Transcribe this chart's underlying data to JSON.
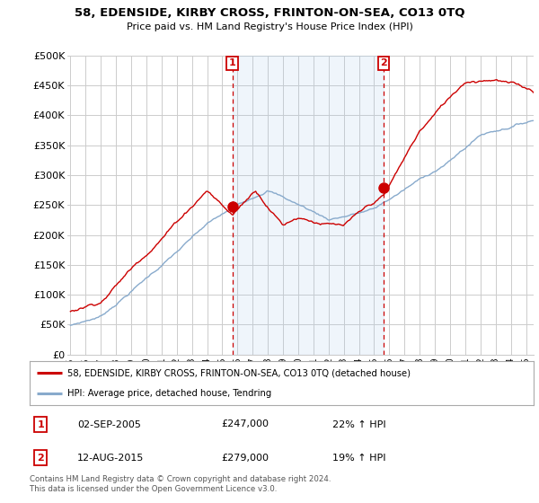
{
  "title": "58, EDENSIDE, KIRBY CROSS, FRINTON-ON-SEA, CO13 0TQ",
  "subtitle": "Price paid vs. HM Land Registry's House Price Index (HPI)",
  "ylabel_ticks": [
    0,
    50000,
    100000,
    150000,
    200000,
    250000,
    300000,
    350000,
    400000,
    450000,
    500000
  ],
  "ylabel_labels": [
    "£0",
    "£50K",
    "£100K",
    "£150K",
    "£200K",
    "£250K",
    "£300K",
    "£350K",
    "£400K",
    "£450K",
    "£500K"
  ],
  "ylim": [
    0,
    500000
  ],
  "xlim_start": 1994.8,
  "xlim_end": 2025.5,
  "xtick_years": [
    1995,
    1996,
    1997,
    1998,
    1999,
    2000,
    2001,
    2002,
    2003,
    2004,
    2005,
    2006,
    2007,
    2008,
    2009,
    2010,
    2011,
    2012,
    2013,
    2014,
    2015,
    2016,
    2017,
    2018,
    2019,
    2020,
    2021,
    2022,
    2023,
    2024,
    2025
  ],
  "sale1_x": 2005.67,
  "sale1_y": 247000,
  "sale2_x": 2015.62,
  "sale2_y": 279000,
  "red_line_color": "#cc0000",
  "blue_line_color": "#88aacc",
  "fill_color": "#ddeeff",
  "vline_color": "#cc0000",
  "marker_box_color": "#cc0000",
  "legend_label_red": "58, EDENSIDE, KIRBY CROSS, FRINTON-ON-SEA, CO13 0TQ (detached house)",
  "legend_label_blue": "HPI: Average price, detached house, Tendring",
  "annotation1": [
    "1",
    "02-SEP-2005",
    "£247,000",
    "22% ↑ HPI"
  ],
  "annotation2": [
    "2",
    "12-AUG-2015",
    "£279,000",
    "19% ↑ HPI"
  ],
  "footer": "Contains HM Land Registry data © Crown copyright and database right 2024.\nThis data is licensed under the Open Government Licence v3.0.",
  "bg_color": "#ffffff",
  "grid_color": "#cccccc"
}
